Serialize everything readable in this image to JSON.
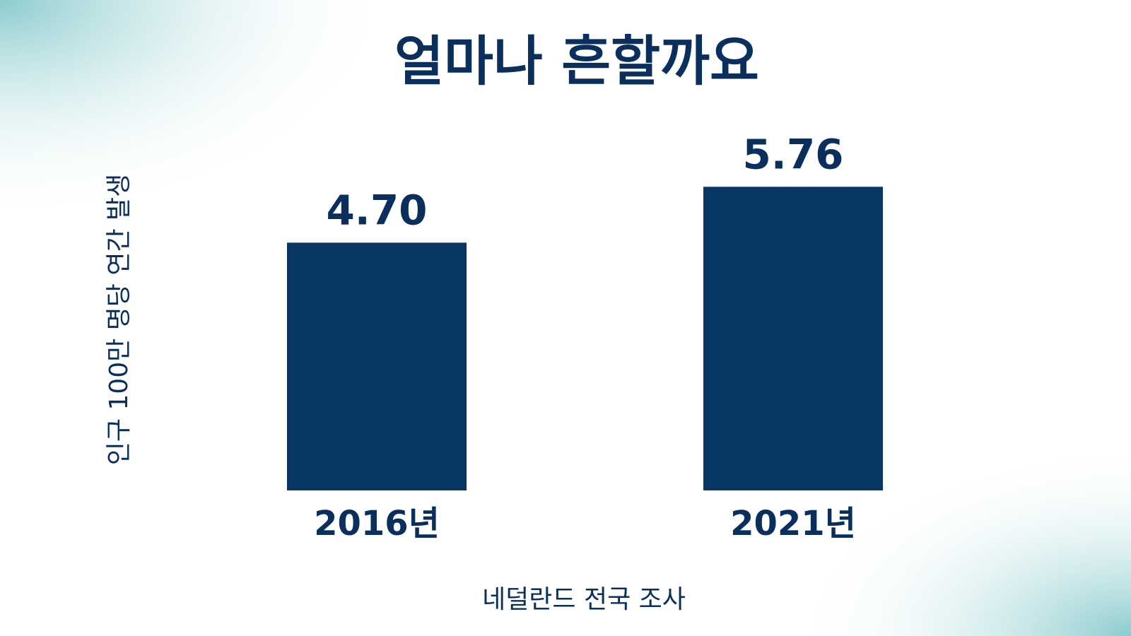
{
  "chart_data": {
    "type": "bar",
    "title": "얼마나 흔할까요",
    "y_label": "인구 100만 명당 연간 발생",
    "categories": [
      "2016년",
      "2021년"
    ],
    "values": [
      4.7,
      5.76
    ],
    "value_labels": [
      "4.70",
      "5.76"
    ],
    "color": "#083764",
    "note": "네덜란드 전국 조사"
  }
}
